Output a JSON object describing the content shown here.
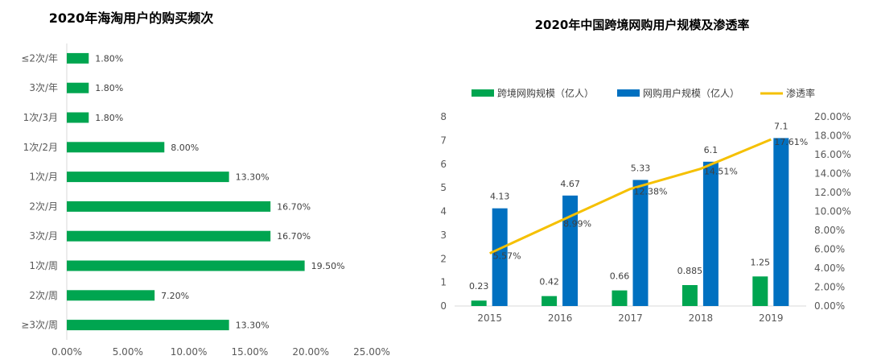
{
  "chart_data": [
    {
      "type": "bar",
      "orientation": "horizontal",
      "title": "2020年海淘用户的购买频次",
      "categories": [
        "≤2次/年",
        "3次/年",
        "1次/3月",
        "1次/2月",
        "1次/月",
        "2次/月",
        "3次/月",
        "1次/周",
        "2次/周",
        "≥3次/周"
      ],
      "values": [
        1.8,
        1.8,
        1.8,
        8.0,
        13.3,
        16.7,
        16.7,
        19.5,
        7.2,
        13.3
      ],
      "value_labels": [
        "1.80%",
        "1.80%",
        "1.80%",
        "8.00%",
        "13.30%",
        "16.70%",
        "16.70%",
        "19.50%",
        "7.20%",
        "13.30%"
      ],
      "xlim": [
        0,
        25
      ],
      "xticks": [
        "0.00%",
        "5.00%",
        "10.00%",
        "15.00%",
        "20.00%",
        "25.00%"
      ],
      "color": "#00A550",
      "grid": false
    },
    {
      "type": "bar",
      "combo": "bar+line",
      "title": "2020年中国跨境网购用户规模及渗透率",
      "categories": [
        "2015",
        "2016",
        "2017",
        "2018",
        "2019"
      ],
      "series": [
        {
          "name": "跨境网购规模（亿人）",
          "type": "bar",
          "axis": "left",
          "color": "#00A550",
          "values": [
            0.23,
            0.42,
            0.66,
            0.885,
            1.25
          ],
          "labels": [
            "0.23",
            "0.42",
            "0.66",
            "0.885",
            "1.25"
          ]
        },
        {
          "name": "网购用户规模（亿人）",
          "type": "bar",
          "axis": "left",
          "color": "#0070C0",
          "values": [
            4.13,
            4.67,
            5.33,
            6.1,
            7.1
          ],
          "labels": [
            "4.13",
            "4.67",
            "5.33",
            "6.1",
            "7.1"
          ]
        },
        {
          "name": "渗透率",
          "type": "line",
          "axis": "right",
          "color": "#F5C000",
          "values": [
            5.57,
            8.99,
            12.38,
            14.51,
            17.61
          ],
          "labels": [
            "5.57%",
            "8.99%",
            "12.38%",
            "14.51%",
            "17.61%"
          ]
        }
      ],
      "ylim_left": [
        0,
        8
      ],
      "yticks_left": [
        "0",
        "1",
        "2",
        "3",
        "4",
        "5",
        "6",
        "7",
        "8"
      ],
      "ylim_right": [
        0,
        20
      ],
      "yticks_right": [
        "0.00%",
        "2.00%",
        "4.00%",
        "6.00%",
        "8.00%",
        "10.00%",
        "12.00%",
        "14.00%",
        "16.00%",
        "18.00%",
        "20.00%"
      ],
      "legend_position": "top",
      "grid": false
    }
  ]
}
